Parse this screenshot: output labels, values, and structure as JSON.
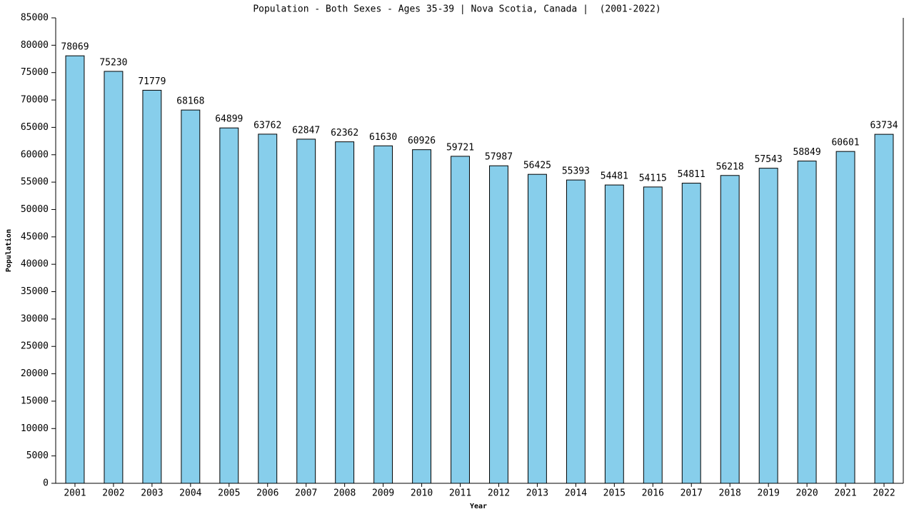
{
  "chart_data": {
    "type": "bar",
    "title": "Population - Both Sexes - Ages 35-39 | Nova Scotia, Canada |  (2001-2022)",
    "x_label": "Year",
    "y_label": "Population",
    "categories": [
      "2001",
      "2002",
      "2003",
      "2004",
      "2005",
      "2006",
      "2007",
      "2008",
      "2009",
      "2010",
      "2011",
      "2012",
      "2013",
      "2014",
      "2015",
      "2016",
      "2017",
      "2018",
      "2019",
      "2020",
      "2021",
      "2022"
    ],
    "values": [
      78069,
      75230,
      71779,
      68168,
      64899,
      63762,
      62847,
      62362,
      61630,
      60926,
      59721,
      57987,
      56425,
      55393,
      54481,
      54115,
      54811,
      56218,
      57543,
      58849,
      60601,
      63734
    ],
    "color": "#87ceeb",
    "ylim": [
      0,
      85000
    ],
    "yticks": [
      0,
      5000,
      10000,
      15000,
      20000,
      25000,
      30000,
      35000,
      40000,
      45000,
      50000,
      55000,
      60000,
      65000,
      70000,
      75000,
      80000,
      85000
    ],
    "grid": false
  }
}
